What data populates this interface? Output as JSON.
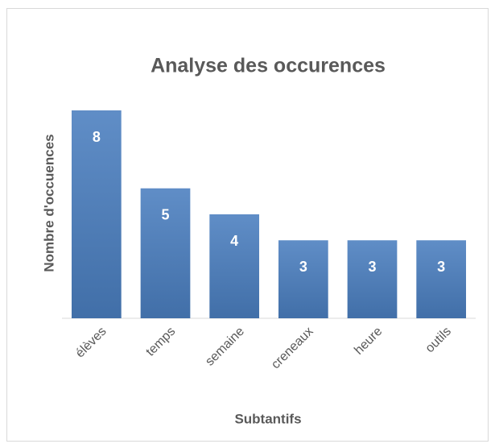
{
  "chart_data": {
    "type": "bar",
    "title": "Analyse des occurences",
    "categories": [
      "élèves",
      "temps",
      "semaine",
      "creneaux",
      "heure",
      "outils"
    ],
    "values": [
      8,
      5,
      4,
      3,
      3,
      3
    ],
    "color": "#4a7ebf",
    "ylim": [
      0,
      8
    ],
    "ylabel": "Nombre d'occuences",
    "xlabel": "Subtantifs"
  }
}
